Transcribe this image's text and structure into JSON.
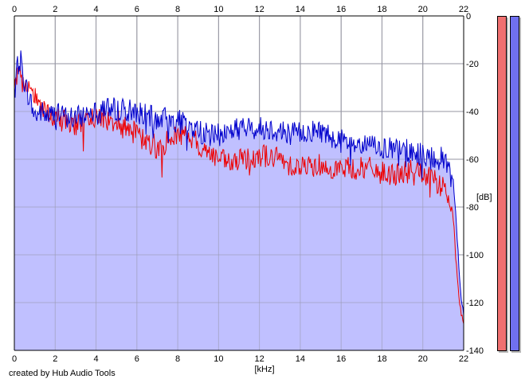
{
  "credit": "created by Hub Audio Tools",
  "meters": {
    "left_color": "#f07070",
    "right_color": "#7070f0"
  },
  "chart_data": {
    "type": "line",
    "xlabel": "[kHz]",
    "ylabel": "[dB]",
    "xlim": [
      0,
      22
    ],
    "ylim": [
      -140,
      0
    ],
    "x_ticks": [
      0,
      2,
      4,
      6,
      8,
      10,
      12,
      14,
      16,
      18,
      20,
      22
    ],
    "y_ticks": [
      0,
      -20,
      -40,
      -60,
      -80,
      -100,
      -120,
      -140
    ],
    "y_tick_labels": [
      "0",
      "-20",
      "-40",
      "-60",
      "-80",
      "-100",
      "-120",
      "-140"
    ],
    "grid": true,
    "fill_color": "#c0c0ff",
    "series": [
      {
        "color": "#0000cc",
        "x": [
          0,
          0.15,
          0.3,
          0.5,
          0.8,
          1.0,
          1.3,
          1.6,
          2.0,
          2.5,
          3.0,
          3.5,
          4.0,
          4.5,
          5.0,
          5.5,
          6.0,
          6.5,
          7.0,
          7.5,
          8.0,
          8.5,
          9.0,
          9.5,
          10.0,
          10.5,
          11.0,
          11.5,
          12.0,
          12.5,
          13.0,
          13.5,
          14.0,
          14.5,
          15.0,
          15.5,
          16.0,
          16.5,
          17.0,
          17.5,
          18.0,
          18.5,
          19.0,
          19.5,
          20.0,
          20.5,
          21.0,
          21.3,
          21.5,
          21.6,
          21.7,
          21.8,
          21.9,
          22.0
        ],
        "y": [
          -30,
          -22,
          -18,
          -28,
          -36,
          -42,
          -40,
          -42,
          -41,
          -42,
          -43,
          -41,
          -38,
          -38,
          -39,
          -39,
          -40,
          -42,
          -43,
          -43,
          -44,
          -46,
          -48,
          -50,
          -50,
          -48,
          -47,
          -47,
          -47,
          -47,
          -48,
          -49,
          -49,
          -48,
          -48,
          -50,
          -52,
          -54,
          -55,
          -54,
          -55,
          -56,
          -56,
          -57,
          -58,
          -59,
          -60,
          -62,
          -70,
          -80,
          -95,
          -110,
          -120,
          -125
        ]
      },
      {
        "color": "#ee0000",
        "x": [
          0,
          0.15,
          0.3,
          0.5,
          0.8,
          1.0,
          1.3,
          1.6,
          2.0,
          2.5,
          3.0,
          3.5,
          4.0,
          4.5,
          5.0,
          5.5,
          6.0,
          6.5,
          7.0,
          7.5,
          8.0,
          8.5,
          9.0,
          9.5,
          10.0,
          10.5,
          11.0,
          11.5,
          12.0,
          12.5,
          13.0,
          13.5,
          14.0,
          14.5,
          15.0,
          15.5,
          16.0,
          16.5,
          17.0,
          17.5,
          18.0,
          18.5,
          19.0,
          19.5,
          20.0,
          20.5,
          21.0,
          21.3,
          21.5,
          21.6,
          21.7,
          21.8,
          21.9,
          22.0
        ],
        "y": [
          -30,
          -26,
          -26,
          -30,
          -33,
          -33,
          -38,
          -42,
          -43,
          -44,
          -45,
          -45,
          -42,
          -43,
          -44,
          -46,
          -50,
          -53,
          -55,
          -53,
          -49,
          -50,
          -54,
          -57,
          -60,
          -62,
          -61,
          -59,
          -58,
          -59,
          -60,
          -62,
          -63,
          -63,
          -62,
          -63,
          -64,
          -64,
          -64,
          -64,
          -66,
          -66,
          -66,
          -65,
          -66,
          -69,
          -72,
          -76,
          -85,
          -100,
          -110,
          -120,
          -125,
          -128
        ]
      }
    ]
  }
}
